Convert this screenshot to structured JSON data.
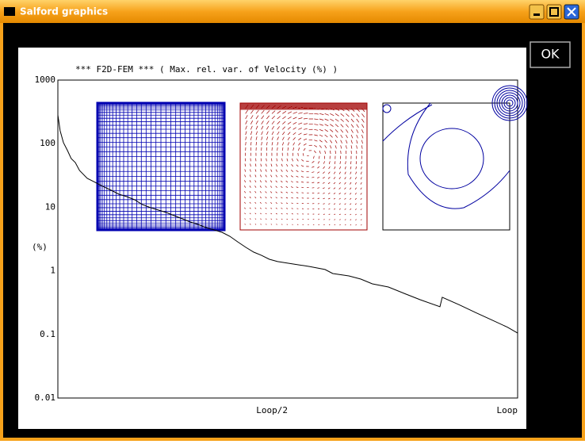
{
  "window": {
    "title": "Salford graphics",
    "button": "OK"
  },
  "chart_data": {
    "type": "line",
    "title": "*** F2D-FEM *** ( Max. rel. var. of Velocity (%) )",
    "y_label": "(%)",
    "color": "#000000",
    "yscale": "log",
    "xlim": [
      0,
      100
    ],
    "ylim": [
      0.01,
      1000
    ],
    "yticks": [
      0.01,
      0.1,
      1,
      10,
      100,
      1000
    ],
    "xticks": [
      {
        "value": 50,
        "label": "Loop/2"
      },
      {
        "value": 100,
        "label": "Loop"
      }
    ],
    "x": [
      0,
      0.5,
      1.2,
      2.1,
      2.9,
      3.8,
      4.7,
      6.4,
      8.1,
      9.8,
      11.6,
      13.3,
      15,
      16.7,
      18.4,
      20.2,
      21.9,
      23.6,
      25.3,
      27.1,
      28.8,
      30.5,
      32.2,
      34,
      35.7,
      37.4,
      39.1,
      40.9,
      42.6,
      44.3,
      46,
      47.8,
      51.2,
      54.7,
      58.1,
      59.8,
      63.3,
      65.9,
      68.4,
      71.9,
      75.3,
      78.8,
      83.1,
      83.6,
      87.4,
      90.9,
      94.3,
      97.8,
      100
    ],
    "values": [
      282,
      159,
      104,
      77.6,
      58.3,
      50.5,
      37.9,
      28.4,
      24.7,
      21.3,
      18.5,
      16.0,
      14.7,
      13.1,
      11.0,
      9.84,
      9.02,
      8.28,
      7.38,
      6.58,
      5.86,
      5.38,
      4.8,
      4.4,
      4.04,
      3.5,
      2.86,
      2.34,
      1.97,
      1.75,
      1.52,
      1.4,
      1.28,
      1.17,
      1.05,
      0.908,
      0.832,
      0.742,
      0.625,
      0.557,
      0.443,
      0.352,
      0.272,
      0.384,
      0.29,
      0.22,
      0.17,
      0.13,
      0.105
    ]
  }
}
